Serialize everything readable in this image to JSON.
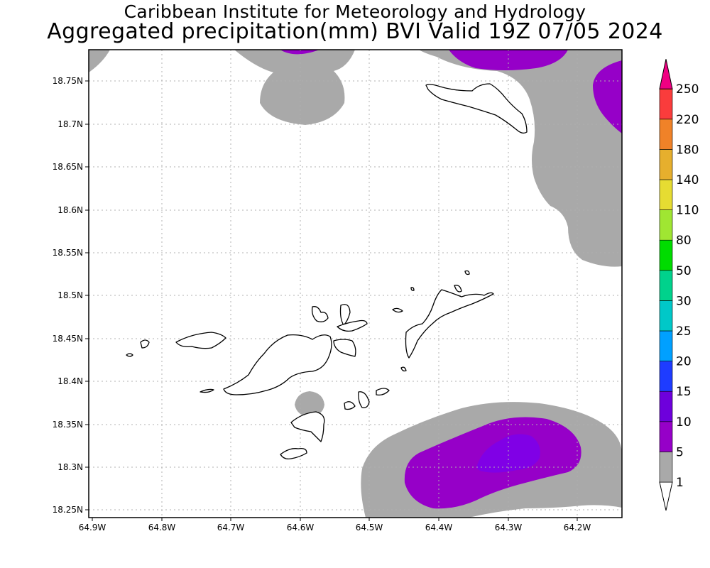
{
  "header": {
    "line1": "Caribbean Institute for Meteorology and Hydrology",
    "line2": "Aggregated precipitation(mm) BVI Valid 19Z 07/05 2024"
  },
  "axes": {
    "lat_labels": [
      "18.75N",
      "18.7N",
      "18.65N",
      "18.6N",
      "18.55N",
      "18.5N",
      "18.45N",
      "18.4N",
      "18.35N",
      "18.3N",
      "18.25N"
    ],
    "lon_labels": [
      "64.9W",
      "64.8W",
      "64.7W",
      "64.6W",
      "64.5W",
      "64.4W",
      "64.3W",
      "64.2W"
    ]
  },
  "colorbar": {
    "labels": [
      "1",
      "5",
      "10",
      "15",
      "20",
      "25",
      "30",
      "50",
      "80",
      "110",
      "140",
      "180",
      "220",
      "250"
    ],
    "colors": [
      "#a9a9a9",
      "#9600c8",
      "#6e00dc",
      "#1e3cff",
      "#00a0ff",
      "#00c8c8",
      "#00d28c",
      "#00dc00",
      "#a0e632",
      "#e6dc32",
      "#e6af2d",
      "#f08228",
      "#fa3c3c",
      "#f00082"
    ],
    "under_color": "#ffffff"
  },
  "legend_colors": {
    "gray": "#a9a9a9",
    "purple": "#9600c8",
    "violet": "#8000e6"
  }
}
